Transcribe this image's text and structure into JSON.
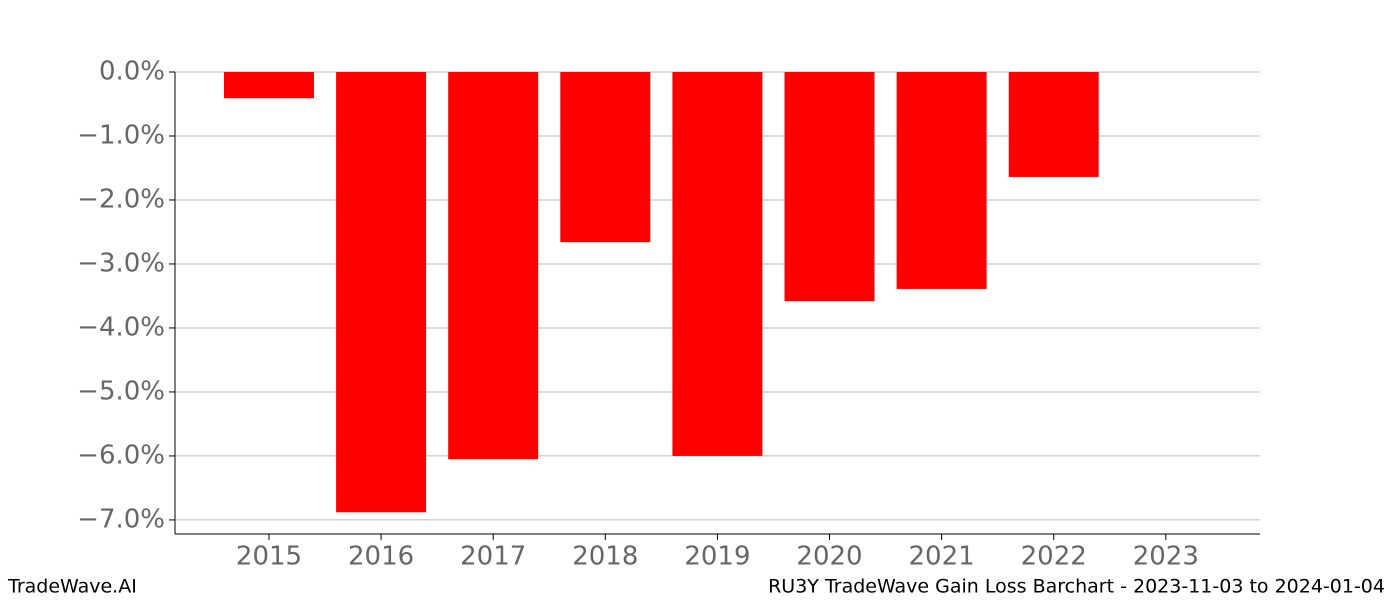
{
  "chart_data": {
    "type": "bar",
    "categories": [
      "2015",
      "2016",
      "2017",
      "2018",
      "2019",
      "2020",
      "2021",
      "2022",
      "2023"
    ],
    "values": [
      -0.41,
      -6.88,
      -6.05,
      -2.66,
      -6.0,
      -3.58,
      -3.39,
      -1.64,
      null
    ],
    "color": "#ff0000",
    "ylim": [
      -7.22,
      0
    ],
    "yticks": [
      {
        "value": 0,
        "label": "0.0%"
      },
      {
        "value": -1,
        "label": "−1.0%"
      },
      {
        "value": -2,
        "label": "−2.0%"
      },
      {
        "value": -3,
        "label": "−3.0%"
      },
      {
        "value": -4,
        "label": "−4.0%"
      },
      {
        "value": -5,
        "label": "−5.0%"
      },
      {
        "value": -6,
        "label": "−6.0%"
      },
      {
        "value": -7,
        "label": "−7.0%"
      }
    ],
    "grid": true
  },
  "footer": {
    "left": "TradeWave.AI",
    "right": "RU3Y TradeWave Gain Loss Barchart - 2023-11-03 to 2024-01-04"
  }
}
